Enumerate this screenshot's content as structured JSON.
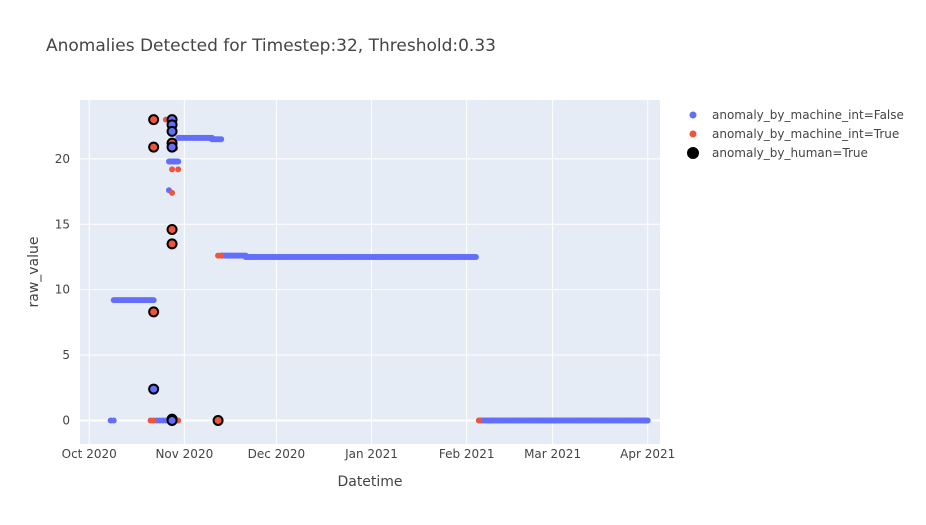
{
  "chart_data": {
    "type": "scatter",
    "title": "Anomalies Detected for Timestep:32, Threshold:0.33",
    "xlabel": "Datetime",
    "ylabel": "raw_value",
    "x_type": "date",
    "xlim": [
      "2020-09-28",
      "2021-04-05"
    ],
    "ylim": [
      -1.8,
      24.5
    ],
    "x_ticks": [
      {
        "value": "2020-10-01",
        "label": "Oct 2020"
      },
      {
        "value": "2020-11-01",
        "label": "Nov 2020"
      },
      {
        "value": "2020-12-01",
        "label": "Dec 2020"
      },
      {
        "value": "2021-01-01",
        "label": "Jan 2021"
      },
      {
        "value": "2021-02-01",
        "label": "Feb 2021"
      },
      {
        "value": "2021-03-01",
        "label": "Mar 2021"
      },
      {
        "value": "2021-04-01",
        "label": "Apr 2021"
      }
    ],
    "y_ticks": [
      {
        "value": 0,
        "label": "0"
      },
      {
        "value": 5,
        "label": "5"
      },
      {
        "value": 10,
        "label": "10"
      },
      {
        "value": 15,
        "label": "15"
      },
      {
        "value": 20,
        "label": "20"
      }
    ],
    "grid": true,
    "plot_background": "#e5ecf6",
    "legend_position": "top-right",
    "series": [
      {
        "name": "anomaly_by_machine_int=False",
        "color": "#636efa",
        "marker": "dot",
        "segments": [
          {
            "x_start": "2020-10-09",
            "x_end": "2020-10-22",
            "y": 9.2
          },
          {
            "x_start": "2020-10-27",
            "x_end": "2020-10-30",
            "y": 19.8
          },
          {
            "x_start": "2020-10-30",
            "x_end": "2020-11-10",
            "y": 21.6
          },
          {
            "x_start": "2020-11-10",
            "x_end": "2020-11-13",
            "y": 21.5
          },
          {
            "x_start": "2020-11-13",
            "x_end": "2020-11-21",
            "y": 12.6
          },
          {
            "x_start": "2020-11-21",
            "x_end": "2021-02-04",
            "y": 12.5
          },
          {
            "x_start": "2021-02-05",
            "x_end": "2021-04-01",
            "y": 0
          }
        ],
        "points": [
          {
            "x": "2020-10-08",
            "y": 0
          },
          {
            "x": "2020-10-09",
            "y": 0
          },
          {
            "x": "2020-10-23",
            "y": 0
          },
          {
            "x": "2020-10-24",
            "y": 0
          },
          {
            "x": "2020-10-25",
            "y": 0
          },
          {
            "x": "2020-10-26",
            "y": 0
          },
          {
            "x": "2020-10-27",
            "y": 0
          },
          {
            "x": "2020-10-28",
            "y": 0
          },
          {
            "x": "2020-10-27",
            "y": 17.6
          }
        ]
      },
      {
        "name": "anomaly_by_machine_int=True",
        "color": "#ef553b",
        "marker": "dot",
        "points": [
          {
            "x": "2020-10-21",
            "y": 0
          },
          {
            "x": "2020-10-22",
            "y": 0
          },
          {
            "x": "2020-10-30",
            "y": 0
          },
          {
            "x": "2020-10-26",
            "y": 23.0
          },
          {
            "x": "2020-10-29",
            "y": 20.8
          },
          {
            "x": "2020-10-28",
            "y": 19.2
          },
          {
            "x": "2020-10-30",
            "y": 19.2
          },
          {
            "x": "2020-10-28",
            "y": 17.4
          },
          {
            "x": "2020-11-12",
            "y": 12.6
          },
          {
            "x": "2020-11-13",
            "y": 12.6
          },
          {
            "x": "2021-02-05",
            "y": 0
          }
        ]
      },
      {
        "name": "anomaly_by_human=True",
        "color": "#000000",
        "marker": "ring",
        "points": [
          {
            "x": "2020-10-22",
            "y": 23.0,
            "fill": "#ef553b"
          },
          {
            "x": "2020-10-22",
            "y": 20.9,
            "fill": "#ef553b"
          },
          {
            "x": "2020-10-22",
            "y": 8.3,
            "fill": "#ef553b"
          },
          {
            "x": "2020-10-22",
            "y": 2.4,
            "fill": "#636efa"
          },
          {
            "x": "2020-10-28",
            "y": 23.0,
            "fill": "#636efa"
          },
          {
            "x": "2020-10-28",
            "y": 22.6,
            "fill": "#636efa"
          },
          {
            "x": "2020-10-28",
            "y": 22.1,
            "fill": "#636efa"
          },
          {
            "x": "2020-10-28",
            "y": 21.2,
            "fill": "#ef553b"
          },
          {
            "x": "2020-10-28",
            "y": 20.9,
            "fill": "#636efa"
          },
          {
            "x": "2020-10-28",
            "y": 14.6,
            "fill": "#ef553b"
          },
          {
            "x": "2020-10-28",
            "y": 13.5,
            "fill": "#ef553b"
          },
          {
            "x": "2020-10-28",
            "y": 0.1,
            "fill": "#636efa"
          },
          {
            "x": "2020-10-28",
            "y": 0,
            "fill": "#636efa"
          },
          {
            "x": "2020-11-12",
            "y": 0,
            "fill": "#ef553b"
          }
        ]
      }
    ]
  }
}
